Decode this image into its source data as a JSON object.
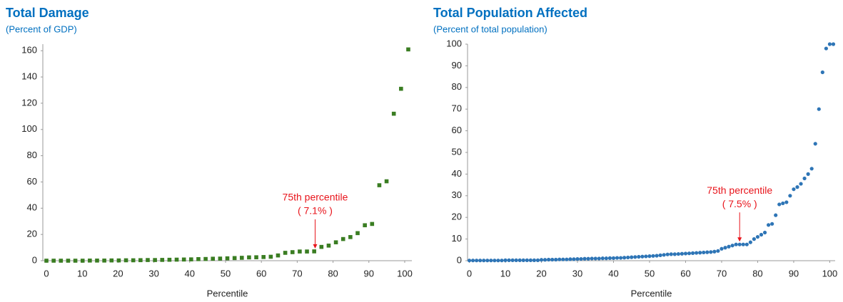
{
  "chart_data": [
    {
      "type": "scatter",
      "title": "Total Damage",
      "subtitle": "(Percent of GDP)",
      "x_label": "Percentile",
      "marker": "square",
      "color": "#3a7d22",
      "x": [
        0,
        2.02,
        4.04,
        6.06,
        8.08,
        10.1,
        12.12,
        14.14,
        16.16,
        18.18,
        20.2,
        22.22,
        24.24,
        26.26,
        28.28,
        30.3,
        32.32,
        34.34,
        36.36,
        38.38,
        40.4,
        42.42,
        44.44,
        46.46,
        48.48,
        50.5,
        52.52,
        54.54,
        56.56,
        58.58,
        60.6,
        62.62,
        64.64,
        66.66,
        68.68,
        70.7,
        72.72,
        74.74,
        76.76,
        78.78,
        80.8,
        82.82,
        84.84,
        86.86,
        88.88,
        90.9,
        92.92,
        94.94,
        96.96,
        98.98,
        101
      ],
      "values": [
        0,
        0,
        0,
        0,
        0,
        0,
        0.1,
        0.1,
        0.1,
        0.2,
        0.2,
        0.3,
        0.3,
        0.4,
        0.5,
        0.5,
        0.6,
        0.7,
        0.8,
        0.9,
        1,
        1.2,
        1.3,
        1.5,
        1.6,
        1.8,
        2,
        2.2,
        2.5,
        2.6,
        2.8,
        3,
        4,
        6,
        6.5,
        7,
        7,
        7.1,
        10.5,
        11.5,
        14,
        16.5,
        18,
        21,
        27,
        28,
        57.5,
        60.5,
        112,
        131,
        161
      ],
      "xlim": [
        -1,
        102
      ],
      "ylim": [
        0,
        165
      ],
      "xticks": [
        0,
        10,
        20,
        30,
        40,
        50,
        60,
        70,
        80,
        90,
        100
      ],
      "yticks": [
        0,
        20,
        40,
        60,
        80,
        100,
        120,
        140,
        160
      ],
      "annotation": {
        "text": [
          "75th percentile",
          "( 7.1% )"
        ],
        "x": 75,
        "y": 7.1
      }
    },
    {
      "type": "scatter",
      "title": "Total Population Affected",
      "subtitle": "(Percent of total population)",
      "x_label": "Percentile",
      "marker": "circle",
      "color": "#2e75b6",
      "x": [
        0,
        1,
        2,
        3,
        4,
        5,
        6,
        7,
        8,
        9,
        10,
        11,
        12,
        13,
        14,
        15,
        16,
        17,
        18,
        19,
        20,
        21,
        22,
        23,
        24,
        25,
        26,
        27,
        28,
        29,
        30,
        31,
        32,
        33,
        34,
        35,
        36,
        37,
        38,
        39,
        40,
        41,
        42,
        43,
        44,
        45,
        46,
        47,
        48,
        49,
        50,
        51,
        52,
        53,
        54,
        55,
        56,
        57,
        58,
        59,
        60,
        61,
        62,
        63,
        64,
        65,
        66,
        67,
        68,
        69,
        70,
        71,
        72,
        73,
        74,
        75,
        76,
        77,
        78,
        79,
        80,
        81,
        82,
        83,
        84,
        85,
        86,
        87,
        88,
        89,
        90,
        91,
        92,
        93,
        94,
        95,
        96,
        97,
        98,
        99,
        100,
        101
      ],
      "values": [
        0.1,
        0.1,
        0.1,
        0.1,
        0.1,
        0.1,
        0.1,
        0.1,
        0.1,
        0.1,
        0.2,
        0.2,
        0.2,
        0.2,
        0.2,
        0.2,
        0.2,
        0.2,
        0.2,
        0.2,
        0.4,
        0.4,
        0.5,
        0.5,
        0.5,
        0.6,
        0.6,
        0.6,
        0.7,
        0.7,
        0.8,
        0.8,
        0.9,
        0.9,
        1,
        1,
        1,
        1.1,
        1.1,
        1.2,
        1.2,
        1.3,
        1.3,
        1.4,
        1.5,
        1.6,
        1.7,
        1.8,
        1.9,
        2,
        2.1,
        2.2,
        2.3,
        2.5,
        2.7,
        2.9,
        3,
        3,
        3.1,
        3.2,
        3.3,
        3.4,
        3.5,
        3.6,
        3.7,
        3.8,
        3.9,
        4,
        4.2,
        4.5,
        5.5,
        6,
        6.5,
        7,
        7.5,
        7.5,
        7.5,
        7.5,
        8.5,
        10,
        11,
        12,
        13,
        16.5,
        17,
        21,
        26,
        26.5,
        27,
        30,
        33,
        34,
        35.5,
        38,
        40,
        42.5,
        54,
        70,
        87,
        98,
        100,
        100
      ],
      "xlim": [
        -0.5,
        101.5
      ],
      "ylim": [
        0,
        100
      ],
      "xticks": [
        0,
        10,
        20,
        30,
        40,
        50,
        60,
        70,
        80,
        90,
        100
      ],
      "yticks": [
        0,
        10,
        20,
        30,
        40,
        50,
        60,
        70,
        80,
        90,
        100
      ],
      "annotation": {
        "text": [
          "75th percentile",
          "( 7.5% )"
        ],
        "x": 75,
        "y": 7.5
      }
    }
  ]
}
